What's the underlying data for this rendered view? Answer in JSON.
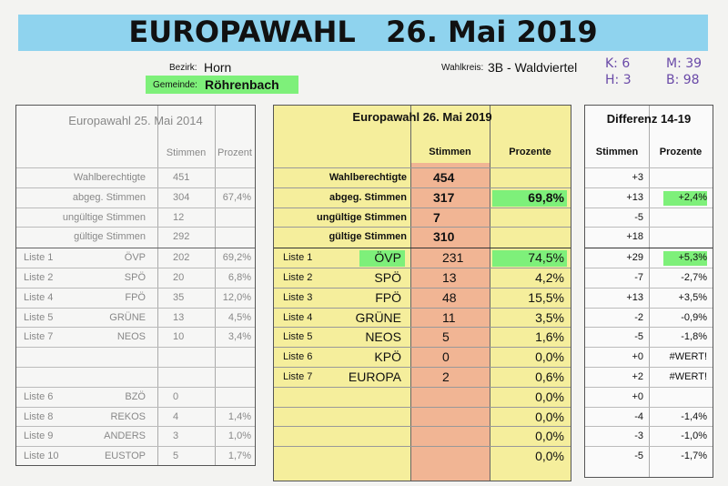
{
  "header": {
    "title": "EUROPAWAHL   26. Mai 2019",
    "bezirk_label": "Bezirk:",
    "bezirk": "Horn",
    "gemeinde_label": "Gemeinde:",
    "gemeinde": "Röhrenbach",
    "wahlkreis_label": "Wahlkreis:",
    "wahlkreis": "3B - Waldviertel",
    "handnotes": [
      "K: 6",
      "M: 39",
      "H: 3",
      "B: 98"
    ]
  },
  "left": {
    "title": "Europawahl 25. Mai 2014",
    "col_stimmen": "Stimmen",
    "col_prozent": "Prozent",
    "stats": [
      {
        "label": "Wahlberechtigte",
        "stimmen": "451",
        "prozent": ""
      },
      {
        "label": "abgeg. Stimmen",
        "stimmen": "304",
        "prozent": "67,4%"
      },
      {
        "label": "ungültige Stimmen",
        "stimmen": "12",
        "prozent": ""
      },
      {
        "label": "gültige Stimmen",
        "stimmen": "292",
        "prozent": ""
      }
    ],
    "parties": [
      {
        "liste": "Liste 1",
        "name": "ÖVP",
        "stimmen": "202",
        "prozent": "69,2%"
      },
      {
        "liste": "Liste 2",
        "name": "SPÖ",
        "stimmen": "20",
        "prozent": "6,8%"
      },
      {
        "liste": "Liste 4",
        "name": "FPÖ",
        "stimmen": "35",
        "prozent": "12,0%"
      },
      {
        "liste": "Liste 5",
        "name": "GRÜNE",
        "stimmen": "13",
        "prozent": "4,5%"
      },
      {
        "liste": "Liste 7",
        "name": "NEOS",
        "stimmen": "10",
        "prozent": "3,4%"
      },
      {
        "liste": "",
        "name": "",
        "stimmen": "",
        "prozent": ""
      },
      {
        "liste": "",
        "name": "",
        "stimmen": "",
        "prozent": ""
      },
      {
        "liste": "Liste 6",
        "name": "BZÖ",
        "stimmen": "0",
        "prozent": ""
      },
      {
        "liste": "Liste 8",
        "name": "REKOS",
        "stimmen": "4",
        "prozent": "1,4%"
      },
      {
        "liste": "Liste 9",
        "name": "ANDERS",
        "stimmen": "3",
        "prozent": "1,0%"
      },
      {
        "liste": "Liste 10",
        "name": "EUSTOP",
        "stimmen": "5",
        "prozent": "1,7%"
      }
    ]
  },
  "center": {
    "title": "Europawahl 26. Mai 2019",
    "col_stimmen": "Stimmen",
    "col_prozent": "Prozente",
    "stats": [
      {
        "label": "Wahlberechtigte",
        "stimmen": "454",
        "prozent": ""
      },
      {
        "label": "abgeg. Stimmen",
        "stimmen": "317",
        "prozent": "69,8%"
      },
      {
        "label": "ungültige Stimmen",
        "stimmen": "7",
        "prozent": ""
      },
      {
        "label": "gültige Stimmen",
        "stimmen": "310",
        "prozent": ""
      }
    ],
    "parties": [
      {
        "liste": "Liste 1",
        "name": "ÖVP",
        "stimmen": "231",
        "prozent": "74,5%"
      },
      {
        "liste": "Liste 2",
        "name": "SPÖ",
        "stimmen": "13",
        "prozent": "4,2%"
      },
      {
        "liste": "Liste 3",
        "name": "FPÖ",
        "stimmen": "48",
        "prozent": "15,5%"
      },
      {
        "liste": "Liste 4",
        "name": "GRÜNE",
        "stimmen": "11",
        "prozent": "3,5%"
      },
      {
        "liste": "Liste 5",
        "name": "NEOS",
        "stimmen": "5",
        "prozent": "1,6%"
      },
      {
        "liste": "Liste 6",
        "name": "KPÖ",
        "stimmen": "0",
        "prozent": "0,0%"
      },
      {
        "liste": "Liste 7",
        "name": "EUROPA",
        "stimmen": "2",
        "prozent": "0,6%"
      },
      {
        "liste": "",
        "name": "",
        "stimmen": "",
        "prozent": "0,0%"
      },
      {
        "liste": "",
        "name": "",
        "stimmen": "",
        "prozent": "0,0%"
      },
      {
        "liste": "",
        "name": "",
        "stimmen": "",
        "prozent": "0,0%"
      },
      {
        "liste": "",
        "name": "",
        "stimmen": "",
        "prozent": "0,0%"
      }
    ]
  },
  "right": {
    "title": "Differenz 14-19",
    "col_stimmen": "Stimmen",
    "col_prozent": "Prozente",
    "stats": [
      {
        "stimmen": "+3",
        "prozent": ""
      },
      {
        "stimmen": "+13",
        "prozent": "+2,4%"
      },
      {
        "stimmen": "-5",
        "prozent": ""
      },
      {
        "stimmen": "+18",
        "prozent": ""
      }
    ],
    "parties": [
      {
        "stimmen": "+29",
        "prozent": "+5,3%"
      },
      {
        "stimmen": "-7",
        "prozent": "-2,7%"
      },
      {
        "stimmen": "+13",
        "prozent": "+3,5%"
      },
      {
        "stimmen": "-2",
        "prozent": "-0,9%"
      },
      {
        "stimmen": "-5",
        "prozent": "-1,8%"
      },
      {
        "stimmen": "+0",
        "prozent": "#WERT!"
      },
      {
        "stimmen": "+2",
        "prozent": "#WERT!"
      },
      {
        "stimmen": "+0",
        "prozent": ""
      },
      {
        "stimmen": "-4",
        "prozent": "-1,4%"
      },
      {
        "stimmen": "-3",
        "prozent": "-1,0%"
      },
      {
        "stimmen": "-5",
        "prozent": "-1,7%"
      }
    ]
  },
  "colors": {
    "banner": "#8fd3ee",
    "highlight": "#7ef07a",
    "yellow": "#f5ee9c",
    "salmon": "#f1b594"
  }
}
